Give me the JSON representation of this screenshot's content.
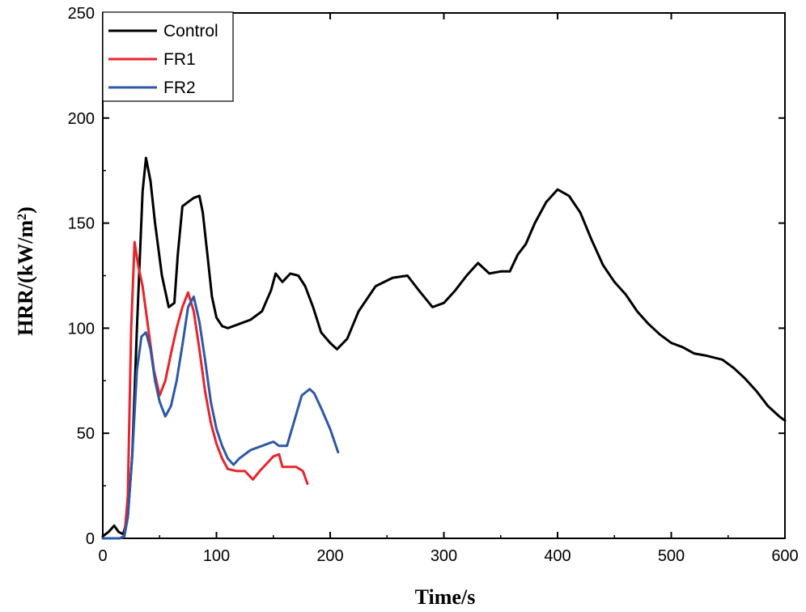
{
  "chart_data": {
    "type": "line",
    "title": "",
    "xlabel": "Time/s",
    "ylabel": "HRR/(kW/m",
    "ylabel_sup": "2",
    "ylabel_close": ")",
    "xlim": [
      0,
      600
    ],
    "ylim": [
      0,
      250
    ],
    "xticks": [
      "0",
      "100",
      "200",
      "300",
      "400",
      "500",
      "600"
    ],
    "yticks": [
      "0",
      "50",
      "100",
      "150",
      "200",
      "250"
    ],
    "grid": false,
    "legend_position": "top-left",
    "series": [
      {
        "name": "Control",
        "color": "#000000",
        "x": [
          0,
          5,
          10,
          14,
          18,
          22,
          26,
          30,
          35,
          38,
          42,
          46,
          52,
          58,
          63,
          66,
          70,
          75,
          80,
          85,
          88,
          92,
          96,
          100,
          105,
          110,
          120,
          130,
          140,
          148,
          152,
          158,
          165,
          172,
          178,
          185,
          192,
          200,
          206,
          215,
          225,
          240,
          255,
          268,
          278,
          290,
          300,
          310,
          320,
          330,
          340,
          350,
          358,
          365,
          372,
          380,
          390,
          400,
          410,
          420,
          430,
          440,
          450,
          460,
          470,
          480,
          490,
          500,
          510,
          520,
          530,
          545,
          555,
          565,
          575,
          585,
          595,
          600
        ],
        "y": [
          1,
          3,
          6,
          3,
          2,
          10,
          40,
          100,
          165,
          181,
          170,
          150,
          125,
          110,
          112,
          135,
          158,
          160,
          162,
          163,
          155,
          135,
          115,
          105,
          101,
          100,
          102,
          104,
          108,
          118,
          126,
          122,
          126,
          125,
          120,
          110,
          98,
          93,
          90,
          95,
          108,
          120,
          124,
          125,
          118,
          110,
          112,
          118,
          125,
          131,
          126,
          127,
          127,
          135,
          140,
          150,
          160,
          166,
          163,
          155,
          142,
          130,
          122,
          116,
          108,
          102,
          97,
          93,
          91,
          88,
          87,
          85,
          81,
          76,
          70,
          63,
          58,
          56
        ]
      },
      {
        "name": "FR1",
        "color": "#e8242a",
        "x": [
          0,
          10,
          15,
          19,
          22,
          25,
          28,
          31,
          35,
          40,
          45,
          50,
          55,
          60,
          65,
          70,
          75,
          80,
          85,
          90,
          95,
          100,
          105,
          110,
          118,
          125,
          132,
          138,
          145,
          150,
          155,
          158,
          163,
          170,
          176,
          180
        ],
        "y": [
          0,
          0,
          0,
          1,
          20,
          100,
          141,
          130,
          120,
          100,
          80,
          68,
          75,
          88,
          100,
          110,
          117,
          108,
          90,
          70,
          55,
          45,
          38,
          33,
          32,
          32,
          28,
          32,
          36,
          39,
          40,
          34,
          34,
          34,
          32,
          26
        ]
      },
      {
        "name": "FR2",
        "color": "#2e58a6",
        "x": [
          0,
          10,
          15,
          19,
          22,
          26,
          30,
          34,
          38,
          42,
          46,
          50,
          55,
          60,
          65,
          70,
          75,
          80,
          85,
          90,
          95,
          100,
          105,
          110,
          115,
          120,
          130,
          140,
          150,
          155,
          162,
          168,
          175,
          182,
          186,
          192,
          200,
          207
        ],
        "y": [
          0,
          0,
          0,
          1,
          10,
          40,
          80,
          96,
          98,
          90,
          75,
          65,
          58,
          63,
          75,
          92,
          110,
          115,
          103,
          85,
          65,
          52,
          44,
          38,
          35,
          38,
          42,
          44,
          46,
          44,
          44,
          55,
          68,
          71,
          69,
          62,
          52,
          41
        ]
      }
    ]
  }
}
